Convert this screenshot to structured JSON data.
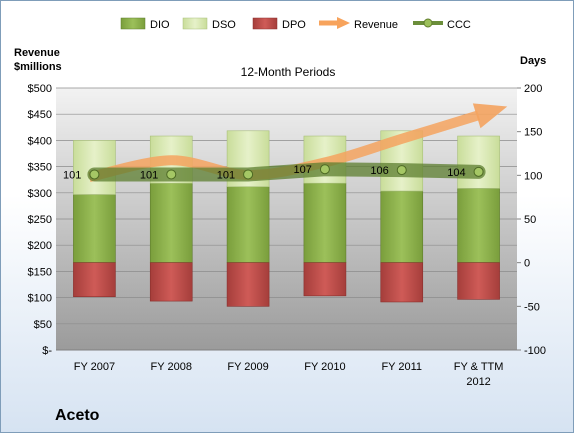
{
  "chart_data": {
    "type": "bar",
    "title": "12-Month Periods",
    "company": "Aceto",
    "left_axis_title": [
      "Revenue",
      "$millions"
    ],
    "right_axis_title": "Days",
    "categories": [
      [
        "FY 2007"
      ],
      [
        "FY 2008"
      ],
      [
        "FY 2009"
      ],
      [
        "FY 2010"
      ],
      [
        "FY 2011"
      ],
      [
        "FY & TTM",
        "2012"
      ]
    ],
    "left_axis": {
      "min": 0,
      "max": 500,
      "step": 50,
      "tick_labels": [
        "$-",
        "$50",
        "$100",
        "$150",
        "$200",
        "$250",
        "$300",
        "$350",
        "$400",
        "$450",
        "$500"
      ]
    },
    "right_axis": {
      "min": -100,
      "max": 200,
      "step": 50,
      "tick_labels": [
        "-100",
        "-50",
        "0",
        "50",
        "100",
        "150",
        "200"
      ]
    },
    "legend": {
      "position": "top",
      "items": [
        "DIO",
        "DSO",
        "DPO",
        "Revenue",
        "CCC"
      ]
    },
    "series": [
      {
        "name": "DIO",
        "axis": "right",
        "kind": "stacked-bar",
        "color": "#8cb04a",
        "values": [
          78,
          91,
          87,
          91,
          82,
          85
        ]
      },
      {
        "name": "DSO",
        "axis": "right",
        "kind": "stacked-bar",
        "color": "#d9eab5",
        "values": [
          62,
          54,
          64,
          54,
          69,
          60
        ]
      },
      {
        "name": "DPO",
        "axis": "right",
        "kind": "negative-bar",
        "color": "#c0504d",
        "values": [
          -39,
          -44,
          -50,
          -38,
          -45,
          -42
        ]
      },
      {
        "name": "Revenue",
        "axis": "left",
        "kind": "trend-arrow",
        "color": "#f7a35c",
        "values": [
          330,
          362,
          334,
          358,
          403,
          448
        ]
      },
      {
        "name": "CCC",
        "axis": "right",
        "kind": "line",
        "color": "#6b8e3a",
        "values": [
          101,
          101,
          101,
          107,
          106,
          104
        ]
      }
    ],
    "data_labels": [
      "101",
      "101",
      "101",
      "107",
      "106",
      "104"
    ],
    "grid": true
  }
}
